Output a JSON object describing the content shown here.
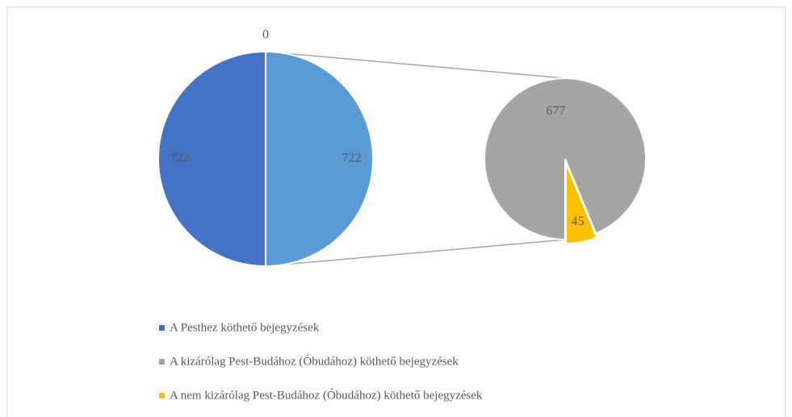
{
  "chart_data": {
    "type": "pie_of_pie",
    "main": {
      "categories": [
        null,
        "A Pesthez köthető bejegyzések",
        null
      ],
      "values": [
        722,
        722,
        0
      ],
      "colors": [
        "#5b9bd5",
        "#4472c4",
        "#a5a5a5"
      ]
    },
    "secondary": {
      "categories": [
        "A kizárólag Pest-Budához (Óbudához) köthető bejegyzések",
        "A nem kizárólag Pest-Budához (Óbudához) köthető bejegyzések"
      ],
      "values": [
        677,
        45
      ],
      "colors": [
        "#a5a5a5",
        "#ffc000"
      ]
    }
  }
}
